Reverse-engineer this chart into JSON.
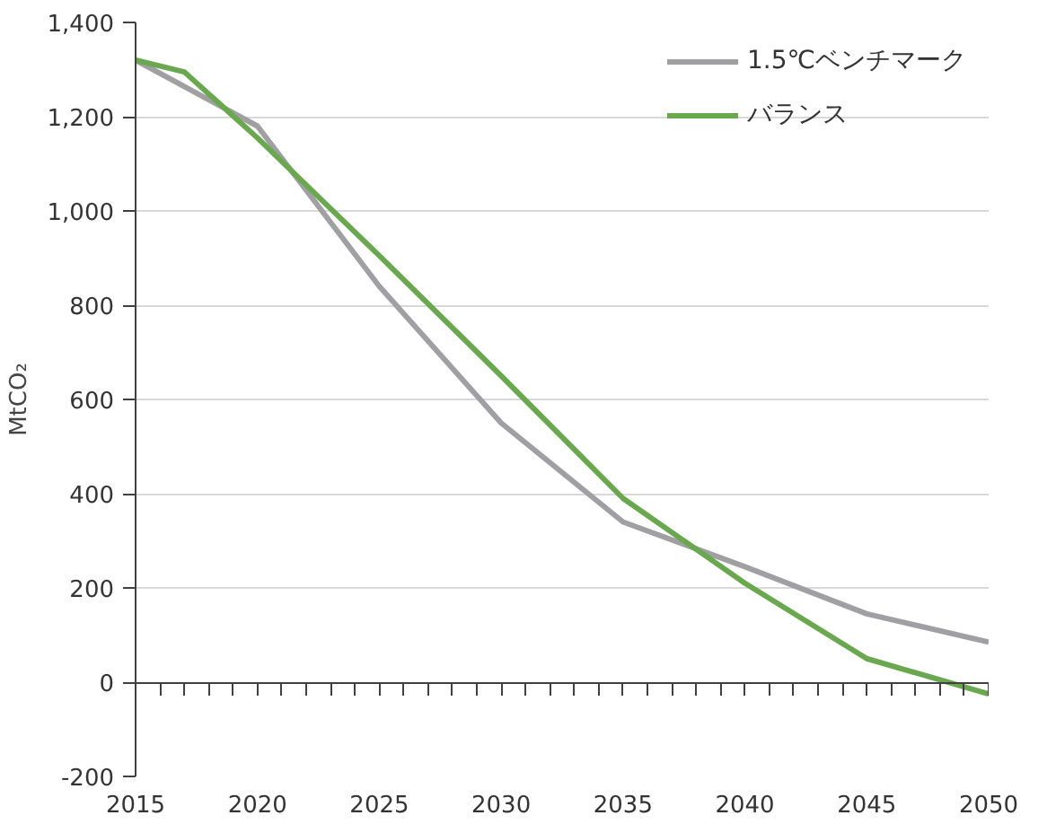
{
  "chart_data": {
    "type": "line",
    "ylabel": "MtCO₂",
    "xlim": [
      2015,
      2050
    ],
    "ylim": [
      -200,
      1400
    ],
    "xticks": [
      2015,
      {
        "value": 2016,
        "label": null
      },
      {
        "value": 2017,
        "label": null
      },
      {
        "value": 2018,
        "label": null
      },
      {
        "value": 2019,
        "label": null
      },
      2020,
      {
        "value": 2021,
        "label": null
      },
      {
        "value": 2022,
        "label": null
      },
      {
        "value": 2023,
        "label": null
      },
      {
        "value": 2024,
        "label": null
      },
      2025,
      {
        "value": 2026,
        "label": null
      },
      {
        "value": 2027,
        "label": null
      },
      {
        "value": 2028,
        "label": null
      },
      {
        "value": 2029,
        "label": null
      },
      2030,
      {
        "value": 2031,
        "label": null
      },
      {
        "value": 2032,
        "label": null
      },
      {
        "value": 2033,
        "label": null
      },
      {
        "value": 2034,
        "label": null
      },
      2035,
      {
        "value": 2036,
        "label": null
      },
      {
        "value": 2037,
        "label": null
      },
      {
        "value": 2038,
        "label": null
      },
      {
        "value": 2039,
        "label": null
      },
      2040,
      {
        "value": 2041,
        "label": null
      },
      {
        "value": 2042,
        "label": null
      },
      {
        "value": 2043,
        "label": null
      },
      {
        "value": 2044,
        "label": null
      },
      2045,
      {
        "value": 2046,
        "label": null
      },
      {
        "value": 2047,
        "label": null
      },
      {
        "value": 2048,
        "label": null
      },
      {
        "value": 2049,
        "label": null
      },
      2050
    ],
    "yticks": [
      {
        "value": -200,
        "label": "-200"
      },
      {
        "value": 0,
        "label": "0"
      },
      {
        "value": 200,
        "label": "200"
      },
      {
        "value": 400,
        "label": "400"
      },
      {
        "value": 600,
        "label": "600"
      },
      {
        "value": 800,
        "label": "800"
      },
      {
        "value": 1000,
        "label": "1,000"
      },
      {
        "value": 1200,
        "label": "1,200"
      },
      {
        "value": 1400,
        "label": "1,400"
      }
    ],
    "grid": "y",
    "legend": "top right",
    "marker": "none",
    "line_style": "solid",
    "series": [
      {
        "name": "1.5℃ベンチマーク",
        "color": "#a0a0a3",
        "x": [
          2015,
          2020,
          2025,
          2030,
          2035,
          2040,
          2045,
          2050
        ],
        "values": [
          1320,
          1180,
          840,
          550,
          340,
          245,
          145,
          85
        ]
      },
      {
        "name": "バランス",
        "color": "#6aa84f",
        "x": [
          2015,
          2017,
          2020,
          2025,
          2030,
          2035,
          2040,
          2045,
          2050
        ],
        "values": [
          1320,
          1295,
          1155,
          905,
          650,
          390,
          210,
          50,
          -25
        ]
      }
    ]
  }
}
